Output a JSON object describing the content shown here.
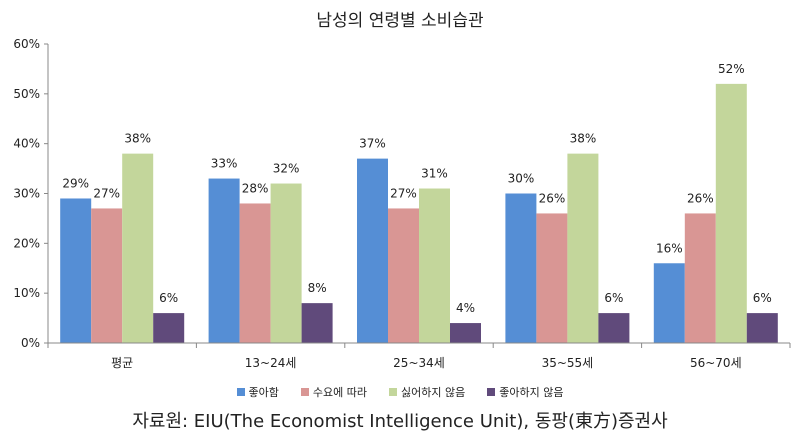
{
  "chart_data": {
    "type": "bar",
    "title": "남성의 연령별 소비습관",
    "categories": [
      "평균",
      "13~24세",
      "25~34세",
      "35~55세",
      "56~70세"
    ],
    "ylim": [
      0,
      60
    ],
    "yticks": [
      "0%",
      "10%",
      "20%",
      "30%",
      "40%",
      "50%",
      "60%"
    ],
    "grid": false,
    "legend_position": "bottom",
    "series": [
      {
        "name": "좋아함",
        "color": "#558ed5",
        "values": [
          29,
          33,
          37,
          30,
          16
        ],
        "labels": [
          "29%",
          "33%",
          "37%",
          "30%",
          "16%"
        ]
      },
      {
        "name": "수요에 따라",
        "color": "#d99694",
        "values": [
          27,
          28,
          27,
          26,
          26
        ],
        "labels": [
          "27%",
          "28%",
          "27%",
          "26%",
          "26%"
        ]
      },
      {
        "name": "싫어하지 않음",
        "color": "#c3d69b",
        "values": [
          38,
          32,
          31,
          38,
          52
        ],
        "labels": [
          "38%",
          "32%",
          "31%",
          "38%",
          "52%"
        ]
      },
      {
        "name": "좋아하지 않음",
        "color": "#604a7b",
        "values": [
          6,
          8,
          4,
          6,
          6
        ],
        "labels": [
          "6%",
          "8%",
          "4%",
          "6%",
          "6%"
        ]
      }
    ]
  },
  "source": "자료원: EIU(The Economist Intelligence Unit), 동팡(東方)증권사"
}
